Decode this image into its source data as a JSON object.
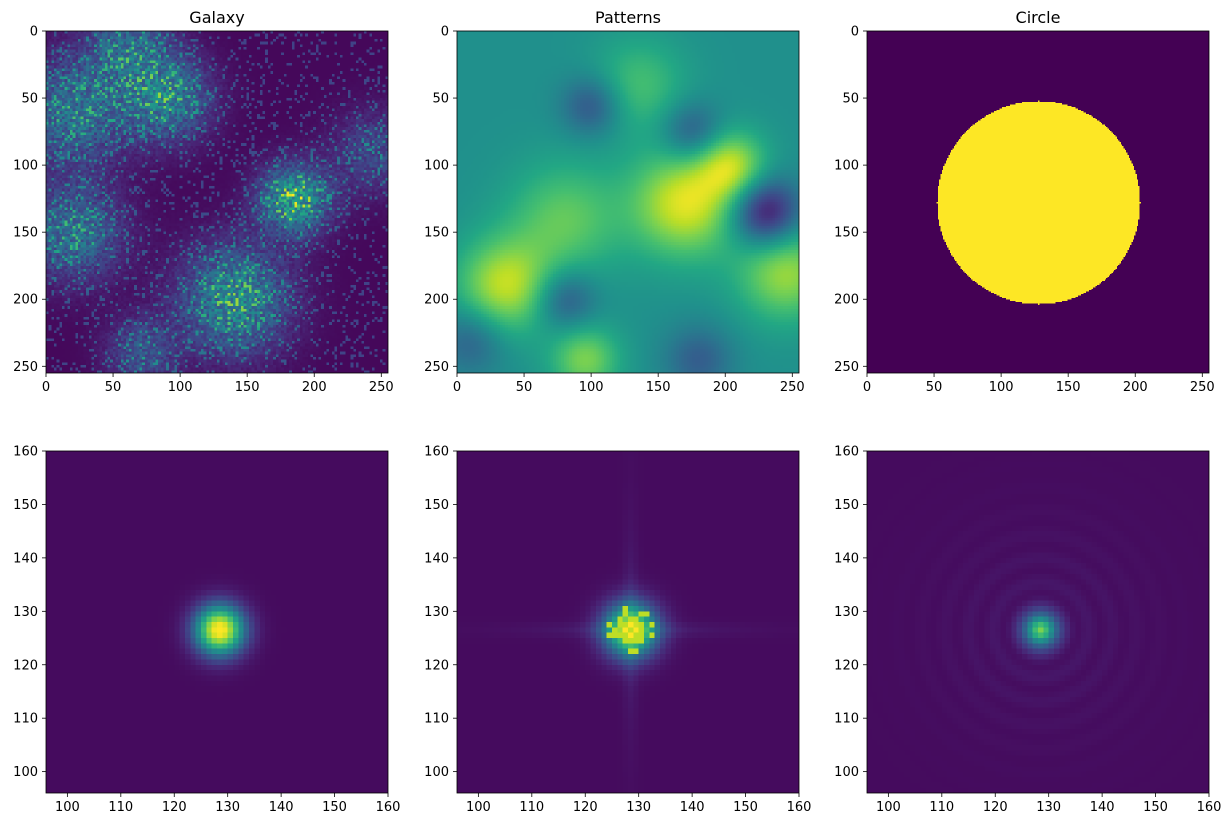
{
  "colormap": "viridis",
  "chart_data": [
    {
      "type": "heatmap",
      "title": "Galaxy",
      "xlabel": "",
      "ylabel": "",
      "xlim": [
        0,
        255
      ],
      "ylim": [
        255,
        0
      ],
      "xticks": [
        "0",
        "50",
        "100",
        "150",
        "200",
        "250"
      ],
      "yticks": [
        "0",
        "50",
        "100",
        "150",
        "200",
        "250"
      ],
      "image": "noisy galaxy field with bright diffuse blobs",
      "features": [
        {
          "x": 20,
          "y": 60,
          "r": 28,
          "v": 0.35
        },
        {
          "x": 90,
          "y": 50,
          "r": 22,
          "v": 0.4
        },
        {
          "x": 185,
          "y": 125,
          "r": 18,
          "v": 0.55
        },
        {
          "x": 140,
          "y": 200,
          "r": 28,
          "v": 0.45
        },
        {
          "x": 20,
          "y": 150,
          "r": 25,
          "v": 0.35
        },
        {
          "x": 60,
          "y": 10,
          "r": 22,
          "v": 0.3
        },
        {
          "x": 70,
          "y": 240,
          "r": 18,
          "v": 0.25
        },
        {
          "x": 245,
          "y": 90,
          "r": 22,
          "v": 0.2
        }
      ]
    },
    {
      "type": "heatmap",
      "title": "Patterns",
      "xlabel": "",
      "ylabel": "",
      "xlim": [
        0,
        255
      ],
      "ylim": [
        255,
        0
      ],
      "xticks": [
        "0",
        "50",
        "100",
        "150",
        "200",
        "250"
      ],
      "yticks": [
        "0",
        "50",
        "100",
        "150",
        "200",
        "250"
      ],
      "image": "smooth random pattern",
      "features": [
        {
          "x": 170,
          "y": 128,
          "r": 28,
          "v": 0.95
        },
        {
          "x": 205,
          "y": 100,
          "r": 18,
          "v": 0.85
        },
        {
          "x": 35,
          "y": 190,
          "r": 25,
          "v": 0.9
        },
        {
          "x": 245,
          "y": 180,
          "r": 25,
          "v": 0.85
        },
        {
          "x": 95,
          "y": 245,
          "r": 18,
          "v": 0.8
        },
        {
          "x": 80,
          "y": 140,
          "r": 30,
          "v": 0.75
        },
        {
          "x": 135,
          "y": 40,
          "r": 25,
          "v": 0.7
        },
        {
          "x": 230,
          "y": 135,
          "r": 18,
          "v": 0.02
        },
        {
          "x": 100,
          "y": 55,
          "r": 16,
          "v": 0.25
        },
        {
          "x": 175,
          "y": 75,
          "r": 16,
          "v": 0.25
        },
        {
          "x": 80,
          "y": 200,
          "r": 16,
          "v": 0.25
        },
        {
          "x": 180,
          "y": 245,
          "r": 18,
          "v": 0.3
        },
        {
          "x": 10,
          "y": 230,
          "r": 18,
          "v": 0.3
        }
      ],
      "background": 0.5
    },
    {
      "type": "heatmap",
      "title": "Circle",
      "xlabel": "",
      "ylabel": "",
      "xlim": [
        0,
        255
      ],
      "ylim": [
        255,
        0
      ],
      "xticks": [
        "0",
        "50",
        "100",
        "150",
        "200",
        "250"
      ],
      "yticks": [
        "0",
        "50",
        "100",
        "150",
        "200",
        "250"
      ],
      "image": "binary disk",
      "circle": {
        "cx": 128,
        "cy": 128,
        "r": 76,
        "value": 1,
        "background": 0
      }
    },
    {
      "type": "heatmap",
      "title": "",
      "xlabel": "",
      "ylabel": "",
      "xlim": [
        96,
        160
      ],
      "ylim": [
        96,
        160
      ],
      "xticks": [
        "100",
        "110",
        "120",
        "130",
        "140",
        "150",
        "160"
      ],
      "yticks": [
        "100",
        "110",
        "120",
        "130",
        "140",
        "150",
        "160"
      ],
      "image": "power spectrum of Galaxy",
      "peak": {
        "x": 128,
        "y": 127,
        "spread": 3.2,
        "v": 1
      }
    },
    {
      "type": "heatmap",
      "title": "",
      "xlabel": "",
      "ylabel": "",
      "xlim": [
        96,
        160
      ],
      "ylim": [
        96,
        160
      ],
      "xticks": [
        "100",
        "110",
        "120",
        "130",
        "140",
        "150",
        "160"
      ],
      "yticks": [
        "100",
        "110",
        "120",
        "130",
        "140",
        "150",
        "160"
      ],
      "image": "power spectrum of Patterns",
      "peak": {
        "x": 128,
        "y": 127,
        "spread": 3.5,
        "v": 0.85
      }
    },
    {
      "type": "heatmap",
      "title": "",
      "xlabel": "",
      "ylabel": "",
      "xlim": [
        96,
        160
      ],
      "ylim": [
        96,
        160
      ],
      "xticks": [
        "100",
        "110",
        "120",
        "130",
        "140",
        "150",
        "160"
      ],
      "yticks": [
        "100",
        "110",
        "120",
        "130",
        "140",
        "150",
        "160"
      ],
      "image": "power spectrum of Circle",
      "peak": {
        "x": 128,
        "y": 127,
        "spread": 2.2,
        "v": 0.7
      }
    }
  ]
}
